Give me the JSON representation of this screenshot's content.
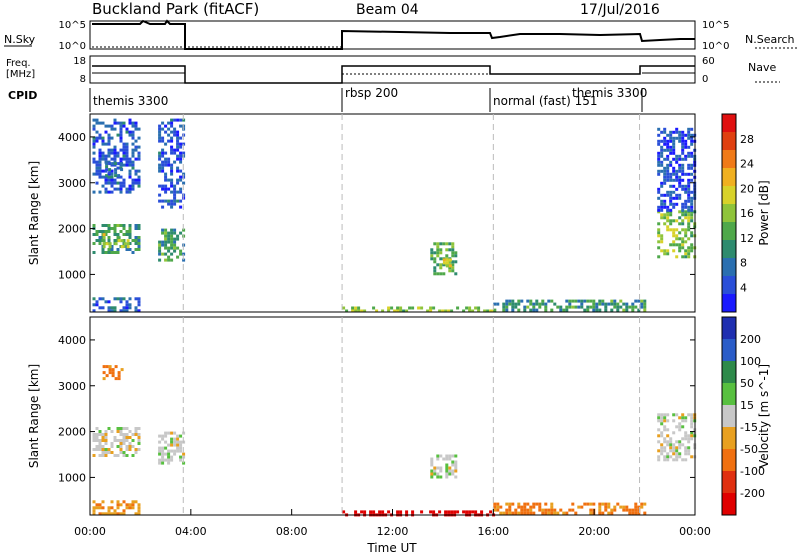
{
  "header": {
    "station": "Buckland Park (fitACF)",
    "beam": "Beam 04",
    "date": "17/Jul/2016"
  },
  "top_panels": {
    "nsky_label": "N.Sky",
    "nsearch_label": "N.Search",
    "freq_label_1": "Freq.",
    "freq_label_2": "[MHz]",
    "nave_label": "Nave",
    "cpid_label": "CPID",
    "noise_ticks": [
      "10^5",
      "10^0"
    ],
    "freq_ticks": [
      "18",
      "8"
    ],
    "nave_ticks": [
      "60",
      "0"
    ]
  },
  "cpid_segments": [
    {
      "label": "themis 3300",
      "start_h": 0
    },
    {
      "label": "rbsp 200",
      "start_h": 10
    },
    {
      "label": "normal (fast) 151",
      "start_h": 16
    },
    {
      "label": "themis 3300",
      "start_h": 21.8
    }
  ],
  "colors": {
    "power": [
      "#1a1aff",
      "#2a4fd8",
      "#2a6fb0",
      "#2e8b6e",
      "#4fa84a",
      "#8fc43a",
      "#d8d22a",
      "#f0b020",
      "#f07a18",
      "#e04010",
      "#e01010"
    ],
    "velocity": [
      "#1f2fb0",
      "#2a5cc8",
      "#2e8a4a",
      "#58c040",
      "#c8c8c8",
      "#e8a020",
      "#f07010",
      "#e03010",
      "#e00000"
    ]
  },
  "chart_data": [
    {
      "type": "heatmap",
      "name": "power",
      "xlabel": "",
      "ylabel": "Slant Range [km]",
      "yticks": [
        "1000",
        "2000",
        "3000",
        "4000"
      ],
      "xlim": [
        0,
        24
      ],
      "ylim": [
        180,
        4500
      ],
      "colorbar_label": "Power [dB]",
      "colorbar_ticks": [
        "4",
        "8",
        "12",
        "16",
        "20",
        "24",
        "28"
      ],
      "colorbar_range": [
        0,
        30
      ],
      "regions": [
        {
          "t": [
            0.1,
            2.0
          ],
          "r": [
            1450,
            2100
          ],
          "level": 10
        },
        {
          "t": [
            0.5,
            1.5
          ],
          "r": [
            1600,
            1900
          ],
          "level": 16
        },
        {
          "t": [
            0.1,
            2.0
          ],
          "r": [
            200,
            500
          ],
          "level": 5
        },
        {
          "t": [
            0.1,
            2.0
          ],
          "r": [
            2800,
            4400
          ],
          "level": 4
        },
        {
          "t": [
            0.6,
            1.3
          ],
          "r": [
            3150,
            3450
          ],
          "level": 6
        },
        {
          "t": [
            2.7,
            3.7
          ],
          "r": [
            1300,
            2000
          ],
          "level": 10
        },
        {
          "t": [
            2.7,
            3.7
          ],
          "r": [
            2500,
            4400
          ],
          "level": 4
        },
        {
          "t": [
            10.0,
            16.0
          ],
          "r": [
            200,
            300
          ],
          "level": 14
        },
        {
          "t": [
            13.5,
            14.5
          ],
          "r": [
            1000,
            1700
          ],
          "level": 12
        },
        {
          "t": [
            14.0,
            14.3
          ],
          "r": [
            1100,
            1350
          ],
          "level": 18
        },
        {
          "t": [
            16.0,
            22.0
          ],
          "r": [
            200,
            450
          ],
          "level": 10
        },
        {
          "t": [
            22.5,
            24.0
          ],
          "r": [
            1400,
            2400
          ],
          "level": 14
        },
        {
          "t": [
            22.5,
            24.0
          ],
          "r": [
            2400,
            4200
          ],
          "level": 3
        }
      ]
    },
    {
      "type": "heatmap",
      "name": "velocity",
      "xlabel": "Time UT",
      "ylabel": "Slant Range [km]",
      "xticks": [
        "00:00",
        "04:00",
        "08:00",
        "12:00",
        "16:00",
        "20:00",
        "00:00"
      ],
      "yticks": [
        "1000",
        "2000",
        "3000",
        "4000"
      ],
      "xlim": [
        0,
        24
      ],
      "ylim": [
        180,
        4500
      ],
      "colorbar_label": "Velocity [m s^-1]",
      "colorbar_ticks": [
        "200",
        "100",
        "50",
        "15",
        "-15",
        "-50",
        "-100",
        "-200"
      ],
      "regions": [
        {
          "t": [
            0.1,
            2.0
          ],
          "r": [
            1450,
            2100
          ],
          "v": 0
        },
        {
          "t": [
            0.5,
            1.3
          ],
          "r": [
            3150,
            3450
          ],
          "v": -60
        },
        {
          "t": [
            0.1,
            2.0
          ],
          "r": [
            200,
            500
          ],
          "v": -40
        },
        {
          "t": [
            2.7,
            3.7
          ],
          "r": [
            1300,
            2000
          ],
          "v": 0
        },
        {
          "t": [
            10.0,
            16.0
          ],
          "r": [
            200,
            280
          ],
          "v": -220
        },
        {
          "t": [
            13.5,
            14.5
          ],
          "r": [
            1000,
            1500
          ],
          "v": 0
        },
        {
          "t": [
            16.0,
            22.0
          ],
          "r": [
            200,
            450
          ],
          "v": -60
        },
        {
          "t": [
            22.5,
            24.0
          ],
          "r": [
            1400,
            2400
          ],
          "v": 0
        }
      ]
    }
  ]
}
